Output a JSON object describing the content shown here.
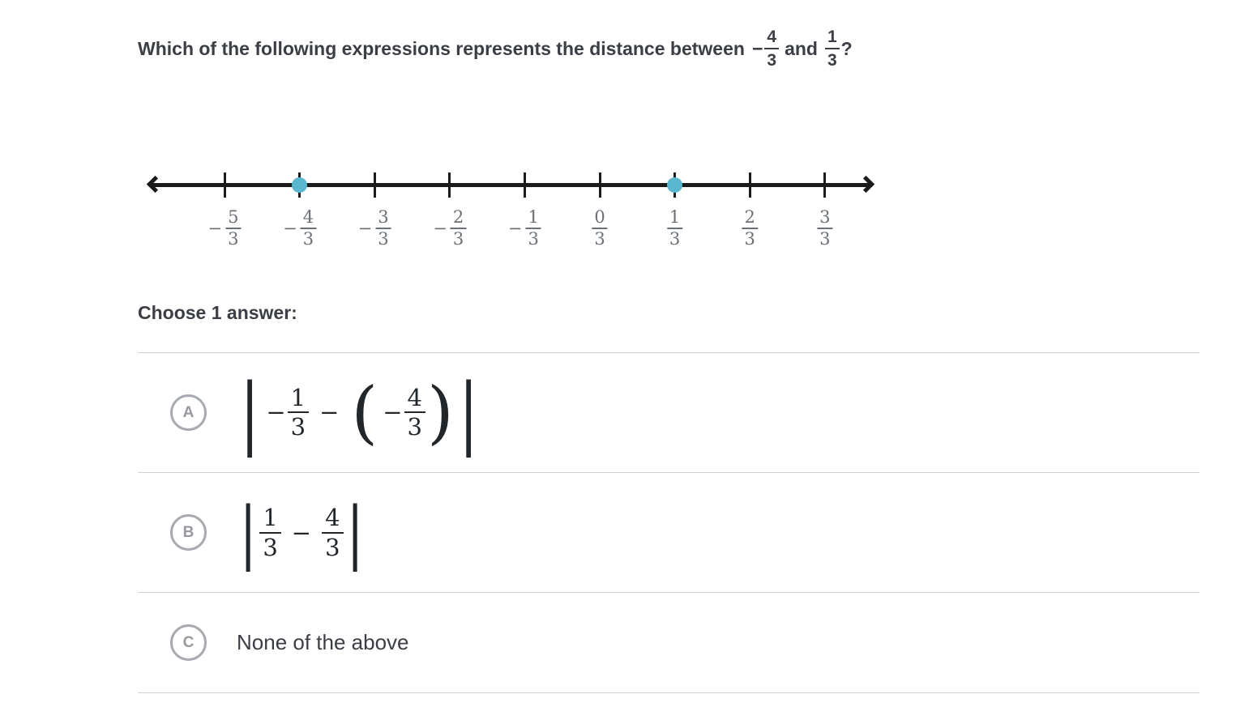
{
  "question": {
    "prefix": "Which of the following expressions represents the distance between",
    "frac1": {
      "sign": "−",
      "num": "4",
      "den": "3"
    },
    "conjunction": "and",
    "frac2": {
      "num": "1",
      "den": "3"
    },
    "suffix": "?"
  },
  "number_line": {
    "dot_color": "#5ab6ce",
    "line_color": "#1b1b1b",
    "label_color": "#6a7075",
    "ticks": [
      {
        "sign": "−",
        "num": "5",
        "den": "3",
        "dot": false
      },
      {
        "sign": "−",
        "num": "4",
        "den": "3",
        "dot": true
      },
      {
        "sign": "−",
        "num": "3",
        "den": "3",
        "dot": false
      },
      {
        "sign": "−",
        "num": "2",
        "den": "3",
        "dot": false
      },
      {
        "sign": "−",
        "num": "1",
        "den": "3",
        "dot": false
      },
      {
        "sign": "",
        "num": "0",
        "den": "3",
        "dot": false
      },
      {
        "sign": "",
        "num": "1",
        "den": "3",
        "dot": true
      },
      {
        "sign": "",
        "num": "2",
        "den": "3",
        "dot": false
      },
      {
        "sign": "",
        "num": "3",
        "den": "3",
        "dot": false
      }
    ]
  },
  "prompt": "Choose 1 answer:",
  "options": {
    "a": {
      "letter": "A",
      "expr": {
        "abs_open": "|",
        "t1_sign": "−",
        "t1_num": "1",
        "t1_den": "3",
        "operator": "−",
        "paren_open": "(",
        "t2_sign": "−",
        "t2_num": "4",
        "t2_den": "3",
        "paren_close": ")",
        "abs_close": "|"
      }
    },
    "b": {
      "letter": "B",
      "expr": {
        "abs_open": "|",
        "t1_num": "1",
        "t1_den": "3",
        "operator": "−",
        "t2_num": "4",
        "t2_den": "3",
        "abs_close": "|"
      }
    },
    "c": {
      "letter": "C",
      "text": "None of the above"
    }
  }
}
